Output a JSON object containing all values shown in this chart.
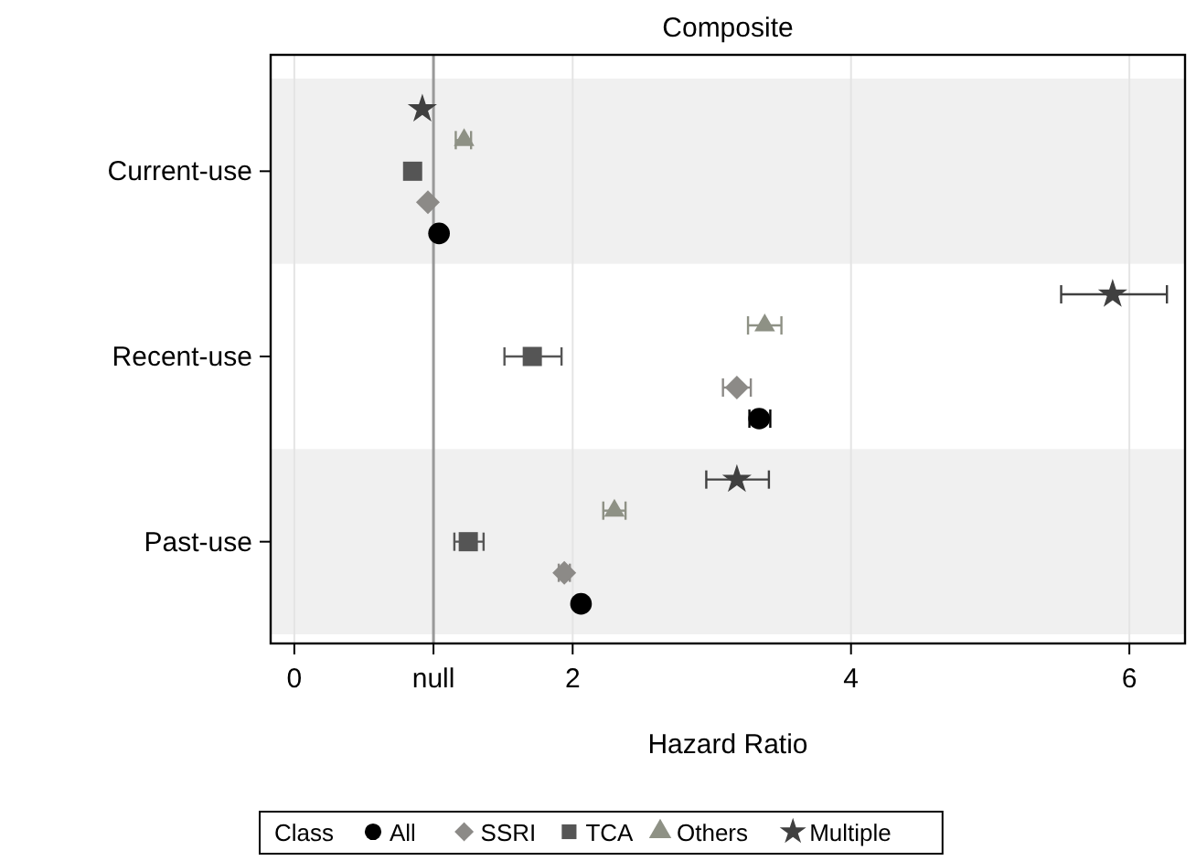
{
  "chart_data": {
    "type": "scatter",
    "orientation": "horizontal",
    "title": "Composite",
    "xlabel": "Hazard Ratio",
    "legend_title": "Class",
    "legend": "bottom",
    "grid": "x",
    "categories": [
      "Current-use",
      "Recent-use",
      "Past-use"
    ],
    "xlim": [
      -0.17,
      6.4
    ],
    "xticks": [
      0,
      {
        "value": 1,
        "label": "null"
      },
      2,
      4,
      6
    ],
    "ref_lines": [
      {
        "axis": "x",
        "value": 1,
        "color": "#999999"
      }
    ],
    "bands": [
      {
        "axis": "y",
        "from": "Current-use",
        "to": "Current-use",
        "color": "#f0f0f0"
      },
      {
        "axis": "y",
        "from": "Past-use",
        "to": "Past-use",
        "color": "#f0f0f0"
      }
    ],
    "series": [
      {
        "name": "All",
        "color": "#000000",
        "marker": "circle",
        "values": [
          1.04,
          3.34,
          2.06
        ],
        "errors": [
          null,
          [
            3.27,
            3.42
          ],
          [
            2.03,
            2.09
          ]
        ]
      },
      {
        "name": "SSRI",
        "color": "#8c8a87",
        "marker": "diamond",
        "values": [
          0.96,
          3.18,
          1.94
        ],
        "errors": [
          null,
          [
            3.08,
            3.28
          ],
          [
            1.9,
            1.98
          ]
        ]
      },
      {
        "name": "TCA",
        "color": "#555555",
        "marker": "square",
        "values": [
          0.85,
          1.71,
          1.25
        ],
        "errors": [
          null,
          [
            1.51,
            1.92
          ],
          [
            1.15,
            1.36
          ]
        ]
      },
      {
        "name": "Others",
        "color": "#8e9185",
        "marker": "triangle",
        "values": [
          1.22,
          3.38,
          2.3
        ],
        "errors": [
          [
            1.16,
            1.27
          ],
          [
            3.26,
            3.5
          ],
          [
            2.22,
            2.38
          ]
        ]
      },
      {
        "name": "Multiple",
        "color": "#404040",
        "marker": "star",
        "values": [
          0.92,
          5.88,
          3.18
        ],
        "errors": [
          null,
          [
            5.51,
            6.27
          ],
          [
            2.96,
            3.41
          ]
        ]
      }
    ]
  }
}
